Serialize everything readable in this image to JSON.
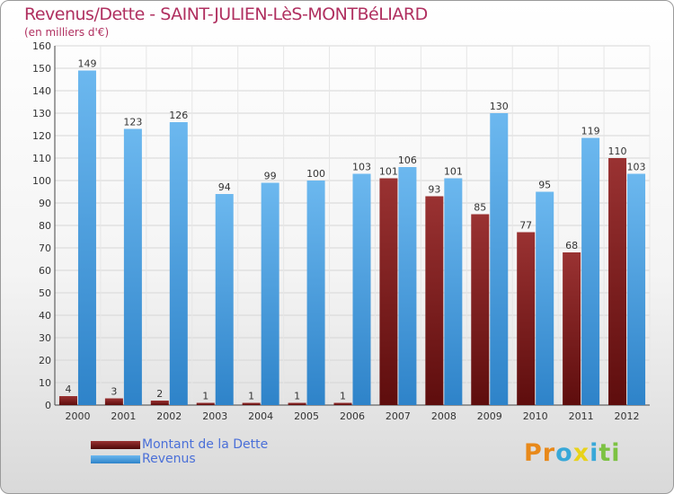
{
  "chart_data": {
    "type": "bar",
    "title": "Revenus/Dette - SAINT-JULIEN-LèS-MONTBéLIARD",
    "subtitle": "(en milliers d'€)",
    "categories": [
      "2000",
      "2001",
      "2002",
      "2003",
      "2004",
      "2005",
      "2006",
      "2007",
      "2008",
      "2009",
      "2010",
      "2011",
      "2012"
    ],
    "series": [
      {
        "name": "Montant de la Dette",
        "color": "#7a1c1c",
        "values": [
          4,
          3,
          2,
          1,
          1,
          1,
          1,
          101,
          93,
          85,
          77,
          68,
          110
        ]
      },
      {
        "name": "Revenus",
        "color": "#4aa3e6",
        "values": [
          149,
          123,
          126,
          94,
          99,
          100,
          103,
          106,
          101,
          130,
          95,
          119,
          103
        ]
      }
    ],
    "ylim": [
      0,
      160
    ],
    "yticks": [
      0,
      10,
      20,
      30,
      40,
      50,
      60,
      70,
      80,
      90,
      100,
      110,
      120,
      130,
      140,
      150,
      160
    ],
    "grid": true,
    "legend": "bottom-left"
  },
  "logo": {
    "text": "Proxiti",
    "letters": [
      {
        "ch": "P",
        "color": "#e8891a"
      },
      {
        "ch": "r",
        "color": "#e8891a"
      },
      {
        "ch": "o",
        "color": "#38a8d8"
      },
      {
        "ch": "x",
        "color": "#e8d21a"
      },
      {
        "ch": "i",
        "color": "#38a8d8"
      },
      {
        "ch": "t",
        "color": "#7cc242"
      },
      {
        "ch": "i",
        "color": "#7cc242"
      }
    ]
  }
}
